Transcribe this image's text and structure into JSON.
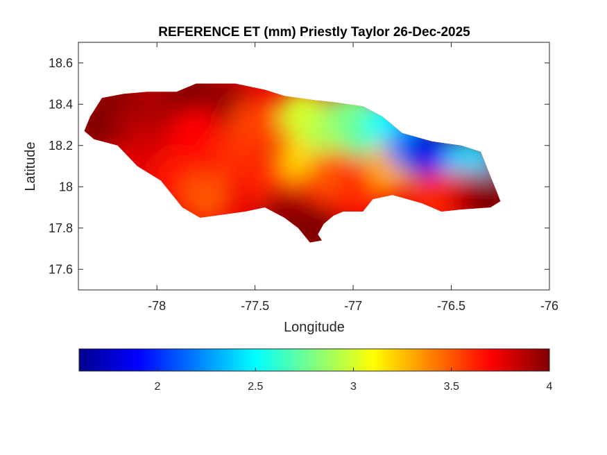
{
  "figure": {
    "title": "REFERENCE ET (mm) Priestly Taylor 26-Dec-2025",
    "xlabel": "Longitude",
    "ylabel": "Latitude"
  },
  "chart_data": {
    "type": "heatmap",
    "title": "REFERENCE ET (mm) Priestly Taylor 26-Dec-2025",
    "xlabel": "Longitude",
    "ylabel": "Latitude",
    "xlim": [
      -78.4,
      -76
    ],
    "ylim": [
      17.5,
      18.7
    ],
    "xticks": [
      {
        "value": -78,
        "label": "-78"
      },
      {
        "value": -77.5,
        "label": "-77.5"
      },
      {
        "value": -77,
        "label": "-77"
      },
      {
        "value": -76.5,
        "label": "-76.5"
      },
      {
        "value": -76,
        "label": "-76"
      }
    ],
    "yticks": [
      {
        "value": 17.6,
        "label": "17.6"
      },
      {
        "value": 17.8,
        "label": "17.8"
      },
      {
        "value": 18,
        "label": "18"
      },
      {
        "value": 18.2,
        "label": "18.2"
      },
      {
        "value": 18.4,
        "label": "18.4"
      },
      {
        "value": 18.6,
        "label": "18.6"
      }
    ],
    "grid": false,
    "colormap": "jet",
    "color_range": [
      1.6,
      4
    ],
    "colorbar": {
      "orientation": "horizontal",
      "placement": "bottom",
      "ticks": [
        {
          "value": 2,
          "label": "2"
        },
        {
          "value": 2.5,
          "label": "2.5"
        },
        {
          "value": 3,
          "label": "3"
        },
        {
          "value": 3.5,
          "label": "3.5"
        },
        {
          "value": 4,
          "label": "4"
        }
      ]
    },
    "outline": [
      [
        -78.37,
        18.27
      ],
      [
        -78.34,
        18.34
      ],
      [
        -78.28,
        18.43
      ],
      [
        -78.17,
        18.45
      ],
      [
        -78.05,
        18.46
      ],
      [
        -77.9,
        18.46
      ],
      [
        -77.8,
        18.5
      ],
      [
        -77.6,
        18.5
      ],
      [
        -77.45,
        18.47
      ],
      [
        -77.35,
        18.44
      ],
      [
        -77.2,
        18.42
      ],
      [
        -77.1,
        18.41
      ],
      [
        -76.95,
        18.39
      ],
      [
        -76.85,
        18.34
      ],
      [
        -76.75,
        18.26
      ],
      [
        -76.6,
        18.22
      ],
      [
        -76.45,
        18.2
      ],
      [
        -76.35,
        18.17
      ],
      [
        -76.3,
        18.05
      ],
      [
        -76.27,
        17.98
      ],
      [
        -76.25,
        17.93
      ],
      [
        -76.3,
        17.9
      ],
      [
        -76.45,
        17.89
      ],
      [
        -76.55,
        17.88
      ],
      [
        -76.65,
        17.92
      ],
      [
        -76.8,
        17.96
      ],
      [
        -76.9,
        17.94
      ],
      [
        -76.95,
        17.88
      ],
      [
        -77.05,
        17.88
      ],
      [
        -77.1,
        17.86
      ],
      [
        -77.15,
        17.82
      ],
      [
        -77.18,
        17.77
      ],
      [
        -77.16,
        17.74
      ],
      [
        -77.22,
        17.73
      ],
      [
        -77.28,
        17.8
      ],
      [
        -77.35,
        17.85
      ],
      [
        -77.45,
        17.9
      ],
      [
        -77.55,
        17.88
      ],
      [
        -77.7,
        17.86
      ],
      [
        -77.78,
        17.85
      ],
      [
        -77.87,
        17.9
      ],
      [
        -77.98,
        18.03
      ],
      [
        -78.1,
        18.1
      ],
      [
        -78.2,
        18.2
      ],
      [
        -78.32,
        18.23
      ],
      [
        -78.37,
        18.27
      ]
    ],
    "field": [
      {
        "lon": -78.3,
        "lat": 18.3,
        "value": 4.0
      },
      {
        "lon": -78.2,
        "lat": 18.4,
        "value": 4.0
      },
      {
        "lon": -78.1,
        "lat": 18.3,
        "value": 3.9
      },
      {
        "lon": -78.0,
        "lat": 18.2,
        "value": 3.8
      },
      {
        "lon": -78.0,
        "lat": 18.4,
        "value": 3.9
      },
      {
        "lon": -77.8,
        "lat": 18.45,
        "value": 4.0
      },
      {
        "lon": -77.65,
        "lat": 18.4,
        "value": 3.95
      },
      {
        "lon": -77.8,
        "lat": 18.25,
        "value": 3.7
      },
      {
        "lon": -77.9,
        "lat": 18.05,
        "value": 3.65
      },
      {
        "lon": -77.75,
        "lat": 17.95,
        "value": 3.5
      },
      {
        "lon": -77.6,
        "lat": 18.15,
        "value": 3.6
      },
      {
        "lon": -77.5,
        "lat": 18.3,
        "value": 3.55
      },
      {
        "lon": -77.4,
        "lat": 18.0,
        "value": 3.6
      },
      {
        "lon": -77.35,
        "lat": 17.85,
        "value": 3.95
      },
      {
        "lon": -77.25,
        "lat": 18.15,
        "value": 3.2
      },
      {
        "lon": -77.25,
        "lat": 18.35,
        "value": 3.0
      },
      {
        "lon": -77.1,
        "lat": 18.25,
        "value": 2.9
      },
      {
        "lon": -77.0,
        "lat": 18.35,
        "value": 2.8
      },
      {
        "lon": -77.1,
        "lat": 18.05,
        "value": 3.5
      },
      {
        "lon": -76.95,
        "lat": 18.0,
        "value": 3.6
      },
      {
        "lon": -76.9,
        "lat": 18.25,
        "value": 2.7
      },
      {
        "lon": -76.8,
        "lat": 18.3,
        "value": 2.5
      },
      {
        "lon": -76.8,
        "lat": 18.1,
        "value": 3.3
      },
      {
        "lon": -76.7,
        "lat": 18.2,
        "value": 2.2
      },
      {
        "lon": -76.6,
        "lat": 18.15,
        "value": 1.8
      },
      {
        "lon": -76.5,
        "lat": 18.1,
        "value": 1.9
      },
      {
        "lon": -76.4,
        "lat": 18.12,
        "value": 2.4
      },
      {
        "lon": -76.55,
        "lat": 17.95,
        "value": 3.6
      },
      {
        "lon": -76.4,
        "lat": 17.95,
        "value": 3.8
      },
      {
        "lon": -76.3,
        "lat": 17.93,
        "value": 4.0
      },
      {
        "lon": -77.2,
        "lat": 17.78,
        "value": 4.0
      }
    ]
  }
}
